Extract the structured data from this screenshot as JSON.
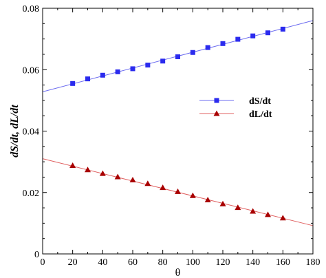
{
  "chart_data": {
    "type": "scatter",
    "title": "",
    "xlabel": "θ",
    "ylabel": "dS/dt, dL/dt",
    "xlim": [
      0,
      180
    ],
    "ylim": [
      0,
      0.08
    ],
    "xticks": [
      0,
      20,
      40,
      60,
      80,
      100,
      120,
      140,
      160,
      180
    ],
    "yticks": [
      0,
      0.02,
      0.04,
      0.06,
      0.08
    ],
    "xtick_labels": [
      "0",
      "20",
      "40",
      "60",
      "80",
      "100",
      "120",
      "140",
      "160",
      "180"
    ],
    "ytick_labels": [
      "0",
      "0.02",
      "0.04",
      "0.06",
      "0.08"
    ],
    "grid": false,
    "legend_position": "right-middle",
    "series": [
      {
        "name": "dS/dt",
        "marker": "square",
        "color": "#2b2bee",
        "line_color": "#6b6bf0",
        "x": [
          20,
          30,
          40,
          50,
          60,
          70,
          80,
          90,
          100,
          110,
          120,
          130,
          140,
          150,
          160
        ],
        "y": [
          0.0555,
          0.057,
          0.0582,
          0.0593,
          0.0603,
          0.0615,
          0.0628,
          0.0642,
          0.0656,
          0.0672,
          0.0685,
          0.0699,
          0.071,
          0.072,
          0.0732
        ],
        "fit_line": {
          "x": [
            0,
            180
          ],
          "y": [
            0.0528,
            0.076
          ]
        }
      },
      {
        "name": "dL/dt",
        "marker": "triangle",
        "color": "#a80000",
        "line_color": "#e06060",
        "x": [
          20,
          30,
          40,
          50,
          60,
          70,
          80,
          90,
          100,
          110,
          120,
          130,
          140,
          150,
          160
        ],
        "y": [
          0.0288,
          0.0274,
          0.0262,
          0.0251,
          0.0241,
          0.0229,
          0.0216,
          0.0203,
          0.019,
          0.0176,
          0.0163,
          0.0151,
          0.0139,
          0.0128,
          0.0117
        ],
        "fit_line": {
          "x": [
            0,
            180
          ],
          "y": [
            0.031,
            0.0092
          ]
        }
      }
    ]
  }
}
